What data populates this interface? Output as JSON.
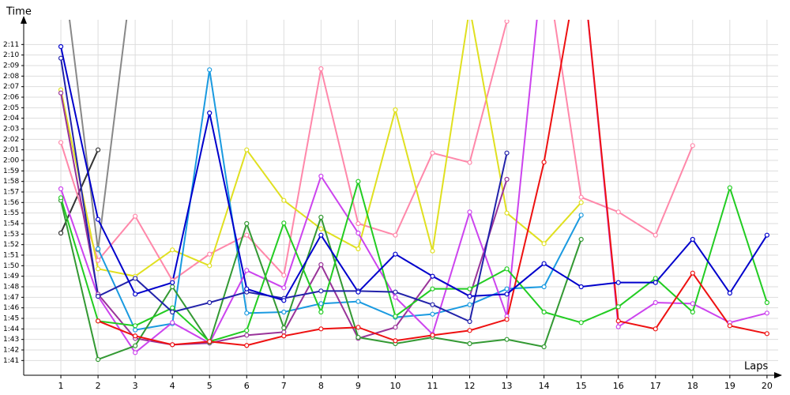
{
  "chart_data": {
    "type": "line",
    "y_label": "Time",
    "x_label": "Laps",
    "x": [
      1,
      2,
      3,
      4,
      5,
      6,
      7,
      8,
      9,
      10,
      11,
      12,
      13,
      14,
      15,
      16,
      17,
      18,
      19,
      20
    ],
    "xlim": [
      0,
      20.3
    ],
    "xticks": [
      1,
      2,
      3,
      4,
      5,
      6,
      7,
      8,
      9,
      10,
      11,
      12,
      13,
      14,
      15,
      16,
      17,
      18,
      19,
      20
    ],
    "ylim": [
      99.6,
      133.35
    ],
    "yticks": [
      {
        "value": 101,
        "label": "1:41"
      },
      {
        "value": 102,
        "label": "1:42"
      },
      {
        "value": 103,
        "label": "1:43"
      },
      {
        "value": 104,
        "label": "1:44"
      },
      {
        "value": 105,
        "label": "1:45"
      },
      {
        "value": 106,
        "label": "1:46"
      },
      {
        "value": 107,
        "label": "1:47"
      },
      {
        "value": 108,
        "label": "1:48"
      },
      {
        "value": 109,
        "label": "1:49"
      },
      {
        "value": 110,
        "label": "1:50"
      },
      {
        "value": 111,
        "label": "1:51"
      },
      {
        "value": 112,
        "label": "1:52"
      },
      {
        "value": 113,
        "label": "1:53"
      },
      {
        "value": 114,
        "label": "1:54"
      },
      {
        "value": 115,
        "label": "1:55"
      },
      {
        "value": 116,
        "label": "1:56"
      },
      {
        "value": 117,
        "label": "1:57"
      },
      {
        "value": 118,
        "label": "1:58"
      },
      {
        "value": 119,
        "label": "1:59"
      },
      {
        "value": 120,
        "label": "2:00"
      },
      {
        "value": 121,
        "label": "2:01"
      },
      {
        "value": 122,
        "label": "2:02"
      },
      {
        "value": 123,
        "label": "2:03"
      },
      {
        "value": 124,
        "label": "2:04"
      },
      {
        "value": 125,
        "label": "2:05"
      },
      {
        "value": 126,
        "label": "2:06"
      },
      {
        "value": 127,
        "label": "2:07"
      },
      {
        "value": 128,
        "label": "2:08"
      },
      {
        "value": 129,
        "label": "2:09"
      },
      {
        "value": 130,
        "label": "2:10"
      },
      {
        "value": 131,
        "label": "2:11"
      }
    ],
    "grid": true,
    "series": [
      {
        "color": "#888888",
        "values": [
          140,
          111.5,
          140,
          null,
          null,
          null,
          null,
          null,
          null,
          null,
          null,
          null,
          null,
          null,
          null,
          null,
          null,
          null,
          null,
          null
        ]
      },
      {
        "color": "#333333",
        "values": [
          113.1,
          121,
          null,
          null,
          null,
          null,
          null,
          null,
          null,
          null,
          null,
          null,
          null,
          null,
          null,
          null,
          null,
          null,
          null,
          null
        ]
      },
      {
        "color": "#ff88aa",
        "values": [
          121.7,
          110.5,
          114.7,
          108.6,
          111.1,
          112.9,
          109.1,
          128.7,
          114,
          112.9,
          120.7,
          119.8,
          133.2,
          140,
          116.5,
          115.1,
          112.9,
          121.4,
          null,
          null
        ]
      },
      {
        "color": "#e0e020",
        "values": [
          126.7,
          109.7,
          109,
          111.5,
          110,
          121,
          116.2,
          113.5,
          111.6,
          124.8,
          111.4,
          134.5,
          115,
          112.1,
          116,
          null,
          null,
          null,
          null,
          null
        ]
      },
      {
        "color": "#1a9ae0",
        "values": [
          null,
          111.6,
          103.9,
          104.5,
          128.6,
          105.5,
          105.6,
          106.4,
          106.6,
          105.1,
          105.4,
          106.3,
          107.8,
          108,
          114.8,
          null,
          null,
          null,
          null,
          null
        ]
      },
      {
        "color": "#993399",
        "values": [
          126.4,
          107.3,
          103.1,
          102.5,
          102.65,
          103.4,
          103.7,
          110.1,
          103.1,
          104.15,
          109,
          107.1,
          118.2,
          null,
          null,
          null,
          null,
          null,
          null,
          null
        ]
      },
      {
        "color": "#cc44ee",
        "values": [
          117.3,
          107.1,
          101.75,
          104.6,
          102.65,
          109.55,
          107.9,
          118.5,
          113.1,
          107,
          103.5,
          115.1,
          105.2,
          140,
          140,
          104.2,
          106.5,
          106.4,
          104.6,
          105.5
        ]
      },
      {
        "color": "#339933",
        "values": [
          116.2,
          101.1,
          102.4,
          108,
          102.7,
          114,
          104.1,
          114.6,
          103.2,
          102.6,
          103.2,
          102.6,
          103,
          102.3,
          112.5,
          null,
          null,
          null,
          null,
          null
        ]
      },
      {
        "color": "#22cc22",
        "values": [
          116.45,
          104.75,
          104.3,
          106,
          102.8,
          103.85,
          114.05,
          105.6,
          118,
          105.2,
          107.8,
          107.8,
          109.7,
          105.6,
          104.6,
          106.1,
          108.8,
          105.6,
          117.4,
          106.5
        ]
      },
      {
        "color": "#ee1111",
        "values": [
          null,
          104.75,
          103.33,
          102.5,
          102.8,
          102.43,
          103.33,
          104,
          104.15,
          102.88,
          103.4,
          103.85,
          104.9,
          119.83,
          140,
          104.75,
          104,
          109.3,
          104.3,
          103.55
        ]
      },
      {
        "color": "#2222aa",
        "values": [
          129.7,
          107.1,
          108.8,
          105.6,
          106.5,
          107.5,
          106.9,
          107.6,
          107.6,
          107.5,
          106.3,
          104.7,
          120.7,
          null,
          null,
          null,
          null,
          null,
          null,
          null
        ]
      },
      {
        "color": "#0000cc",
        "values": [
          130.8,
          114.4,
          107.3,
          108.4,
          124.5,
          107.8,
          106.7,
          112.9,
          107.5,
          111.1,
          109,
          107.1,
          107.3,
          110.2,
          108,
          108.4,
          108.4,
          112.5,
          107.4,
          112.9
        ]
      }
    ]
  }
}
